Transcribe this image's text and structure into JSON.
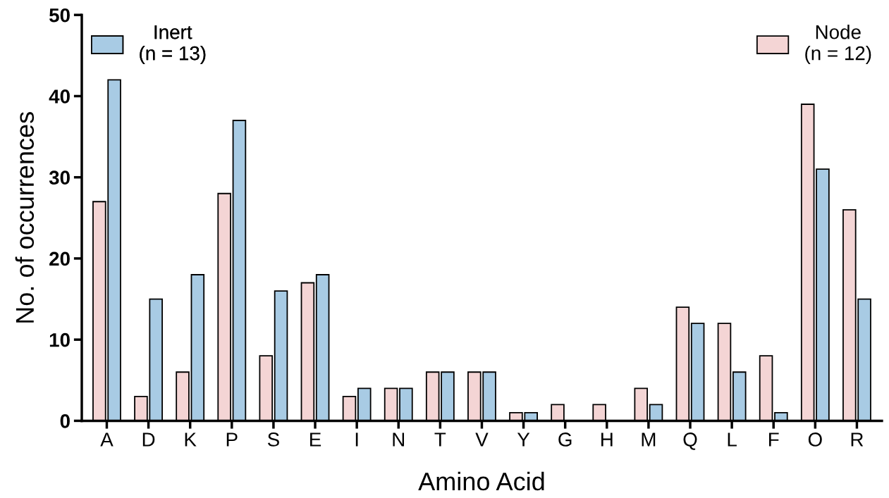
{
  "chart_data": {
    "type": "bar",
    "xlabel": "Amino Acid",
    "ylabel": "No. of occurrences",
    "categories": [
      "A",
      "D",
      "K",
      "P",
      "S",
      "E",
      "I",
      "N",
      "T",
      "V",
      "Y",
      "G",
      "H",
      "M",
      "Q",
      "L",
      "F",
      "O",
      "R"
    ],
    "series": [
      {
        "name": "Node\n(n = 12)",
        "color": "#f4d5d5",
        "values": [
          27,
          3,
          6,
          28,
          8,
          17,
          3,
          4,
          6,
          6,
          1,
          2,
          2,
          4,
          14,
          12,
          8,
          39,
          26
        ]
      },
      {
        "name": "Inert\n(n = 13)",
        "color": "#a8cbe4",
        "values": [
          42,
          15,
          18,
          37,
          16,
          18,
          4,
          4,
          6,
          6,
          1,
          0,
          0,
          2,
          12,
          6,
          1,
          31,
          15
        ]
      }
    ],
    "ylim": [
      0,
      50
    ],
    "yticks": [
      0,
      10,
      20,
      30,
      40,
      50
    ],
    "grid": false,
    "legend": "top"
  }
}
